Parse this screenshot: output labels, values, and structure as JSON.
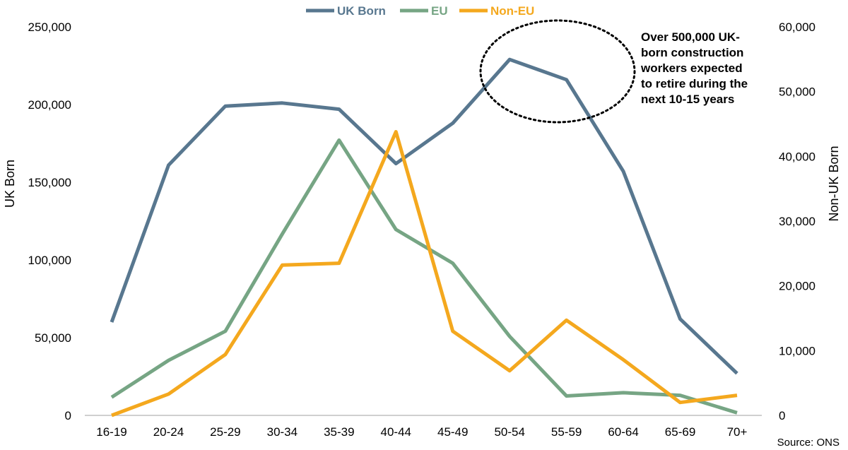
{
  "chart_data": {
    "type": "line",
    "categories": [
      "16-19",
      "20-24",
      "25-29",
      "30-34",
      "35-39",
      "40-44",
      "45-49",
      "50-54",
      "55-59",
      "60-64",
      "65-69",
      "70+"
    ],
    "series": [
      {
        "name": "UK Born",
        "axis": "left",
        "color": "#58778F",
        "values": [
          60000,
          161000,
          199000,
          201000,
          197000,
          162000,
          188000,
          229000,
          216000,
          157000,
          62000,
          27000
        ]
      },
      {
        "name": "EU",
        "axis": "right",
        "color": "#76A584",
        "values": [
          2800,
          8500,
          13000,
          28000,
          42500,
          28700,
          23500,
          12200,
          3000,
          3500,
          3100,
          400
        ]
      },
      {
        "name": "Non-EU",
        "axis": "right",
        "color": "#F4A81E",
        "values": [
          0,
          3300,
          9400,
          23200,
          23500,
          43800,
          13000,
          6900,
          14700,
          8600,
          2000,
          3100
        ]
      }
    ],
    "y_left": {
      "label": "UK Born",
      "ylim": [
        0,
        250000
      ],
      "ticks": [
        "0",
        "50,000",
        "100,000",
        "150,000",
        "200,000",
        "250,000"
      ]
    },
    "y_right": {
      "label": "Non-UK Born",
      "ylim": [
        0,
        60000
      ],
      "ticks": [
        "0",
        "10,000",
        "20,000",
        "30,000",
        "40,000",
        "50,000",
        "60,000"
      ]
    },
    "legend": {
      "placement": "top-center",
      "items": [
        "UK Born",
        "EU",
        "Non-EU"
      ]
    },
    "annotation": {
      "lines": [
        "Over 500,000 UK-",
        "born construction",
        "workers expected",
        "to retire during the",
        "next 10-15 years"
      ]
    },
    "source": "Source: ONS",
    "grid": false
  }
}
